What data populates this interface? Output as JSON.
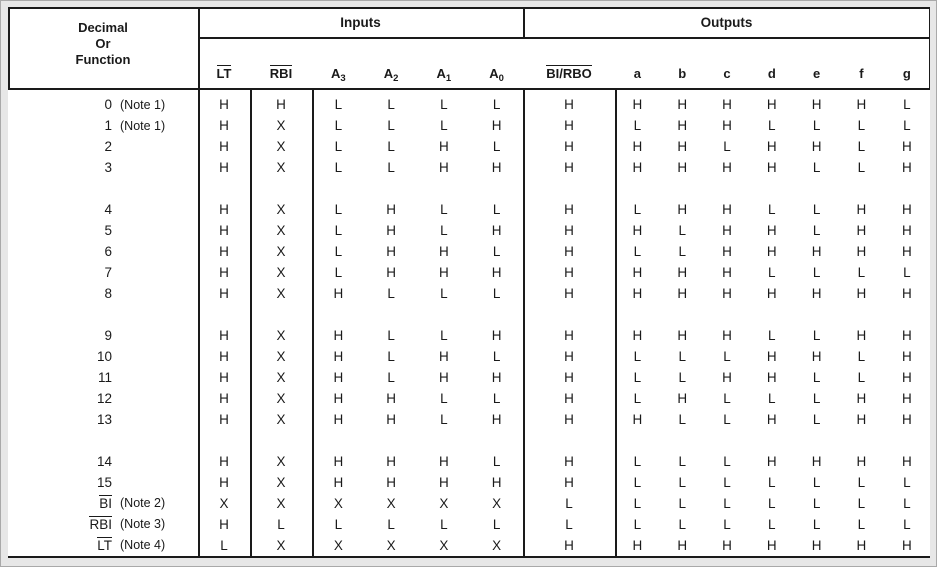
{
  "header": {
    "function_col_title_lines": [
      "Decimal",
      "Or",
      "Function"
    ],
    "inputs_label": "Inputs",
    "outputs_label": "Outputs"
  },
  "columns": [
    {
      "id": "lt",
      "label": "LT",
      "overline": true
    },
    {
      "id": "rbi",
      "label": "RBI",
      "overline": true
    },
    {
      "id": "a3",
      "label": "A",
      "subscript": "3"
    },
    {
      "id": "a2",
      "label": "A",
      "subscript": "2"
    },
    {
      "id": "a1",
      "label": "A",
      "subscript": "1"
    },
    {
      "id": "a0",
      "label": "A",
      "subscript": "0"
    },
    {
      "id": "bi-rbo",
      "label": "BI/RBO",
      "overline": true
    },
    {
      "id": "a",
      "label": "a"
    },
    {
      "id": "b",
      "label": "b"
    },
    {
      "id": "c",
      "label": "c"
    },
    {
      "id": "d",
      "label": "d"
    },
    {
      "id": "e",
      "label": "e"
    },
    {
      "id": "f",
      "label": "f"
    },
    {
      "id": "g",
      "label": "g"
    }
  ],
  "rows": [
    {
      "fn": "0",
      "note": "(Note 1)",
      "overline": false,
      "gap_after": false,
      "values": [
        "H",
        "H",
        "L",
        "L",
        "L",
        "L",
        "H",
        "H",
        "H",
        "H",
        "H",
        "H",
        "H",
        "L"
      ]
    },
    {
      "fn": "1",
      "note": "(Note 1)",
      "overline": false,
      "gap_after": false,
      "values": [
        "H",
        "X",
        "L",
        "L",
        "L",
        "H",
        "H",
        "L",
        "H",
        "H",
        "L",
        "L",
        "L",
        "L"
      ]
    },
    {
      "fn": "2",
      "note": "",
      "overline": false,
      "gap_after": false,
      "values": [
        "H",
        "X",
        "L",
        "L",
        "H",
        "L",
        "H",
        "H",
        "H",
        "L",
        "H",
        "H",
        "L",
        "H"
      ]
    },
    {
      "fn": "3",
      "note": "",
      "overline": false,
      "gap_after": true,
      "values": [
        "H",
        "X",
        "L",
        "L",
        "H",
        "H",
        "H",
        "H",
        "H",
        "H",
        "H",
        "L",
        "L",
        "H"
      ]
    },
    {
      "fn": "4",
      "note": "",
      "overline": false,
      "gap_after": false,
      "values": [
        "H",
        "X",
        "L",
        "H",
        "L",
        "L",
        "H",
        "L",
        "H",
        "H",
        "L",
        "L",
        "H",
        "H"
      ]
    },
    {
      "fn": "5",
      "note": "",
      "overline": false,
      "gap_after": false,
      "values": [
        "H",
        "X",
        "L",
        "H",
        "L",
        "H",
        "H",
        "H",
        "L",
        "H",
        "H",
        "L",
        "H",
        "H"
      ]
    },
    {
      "fn": "6",
      "note": "",
      "overline": false,
      "gap_after": false,
      "values": [
        "H",
        "X",
        "L",
        "H",
        "H",
        "L",
        "H",
        "L",
        "L",
        "H",
        "H",
        "H",
        "H",
        "H"
      ]
    },
    {
      "fn": "7",
      "note": "",
      "overline": false,
      "gap_after": false,
      "values": [
        "H",
        "X",
        "L",
        "H",
        "H",
        "H",
        "H",
        "H",
        "H",
        "H",
        "L",
        "L",
        "L",
        "L"
      ]
    },
    {
      "fn": "8",
      "note": "",
      "overline": false,
      "gap_after": true,
      "values": [
        "H",
        "X",
        "H",
        "L",
        "L",
        "L",
        "H",
        "H",
        "H",
        "H",
        "H",
        "H",
        "H",
        "H"
      ]
    },
    {
      "fn": "9",
      "note": "",
      "overline": false,
      "gap_after": false,
      "values": [
        "H",
        "X",
        "H",
        "L",
        "L",
        "H",
        "H",
        "H",
        "H",
        "H",
        "L",
        "L",
        "H",
        "H"
      ]
    },
    {
      "fn": "10",
      "note": "",
      "overline": false,
      "gap_after": false,
      "values": [
        "H",
        "X",
        "H",
        "L",
        "H",
        "L",
        "H",
        "L",
        "L",
        "L",
        "H",
        "H",
        "L",
        "H"
      ]
    },
    {
      "fn": "11",
      "note": "",
      "overline": false,
      "gap_after": false,
      "values": [
        "H",
        "X",
        "H",
        "L",
        "H",
        "H",
        "H",
        "L",
        "L",
        "H",
        "H",
        "L",
        "L",
        "H"
      ]
    },
    {
      "fn": "12",
      "note": "",
      "overline": false,
      "gap_after": false,
      "values": [
        "H",
        "X",
        "H",
        "H",
        "L",
        "L",
        "H",
        "L",
        "H",
        "L",
        "L",
        "L",
        "H",
        "H"
      ]
    },
    {
      "fn": "13",
      "note": "",
      "overline": false,
      "gap_after": true,
      "values": [
        "H",
        "X",
        "H",
        "H",
        "L",
        "H",
        "H",
        "H",
        "L",
        "L",
        "H",
        "L",
        "H",
        "H"
      ]
    },
    {
      "fn": "14",
      "note": "",
      "overline": false,
      "gap_after": false,
      "values": [
        "H",
        "X",
        "H",
        "H",
        "H",
        "L",
        "H",
        "L",
        "L",
        "L",
        "H",
        "H",
        "H",
        "H"
      ]
    },
    {
      "fn": "15",
      "note": "",
      "overline": false,
      "gap_after": false,
      "values": [
        "H",
        "X",
        "H",
        "H",
        "H",
        "H",
        "H",
        "L",
        "L",
        "L",
        "L",
        "L",
        "L",
        "L"
      ]
    },
    {
      "fn": "BI",
      "note": "(Note 2)",
      "overline": true,
      "gap_after": false,
      "values": [
        "X",
        "X",
        "X",
        "X",
        "X",
        "X",
        "L",
        "L",
        "L",
        "L",
        "L",
        "L",
        "L",
        "L"
      ]
    },
    {
      "fn": "RBI",
      "note": "(Note 3)",
      "overline": true,
      "gap_after": false,
      "values": [
        "H",
        "L",
        "L",
        "L",
        "L",
        "L",
        "L",
        "L",
        "L",
        "L",
        "L",
        "L",
        "L",
        "L"
      ]
    },
    {
      "fn": "LT",
      "note": "(Note 4)",
      "overline": true,
      "gap_after": false,
      "values": [
        "L",
        "X",
        "X",
        "X",
        "X",
        "X",
        "H",
        "H",
        "H",
        "H",
        "H",
        "H",
        "H",
        "H"
      ]
    }
  ]
}
